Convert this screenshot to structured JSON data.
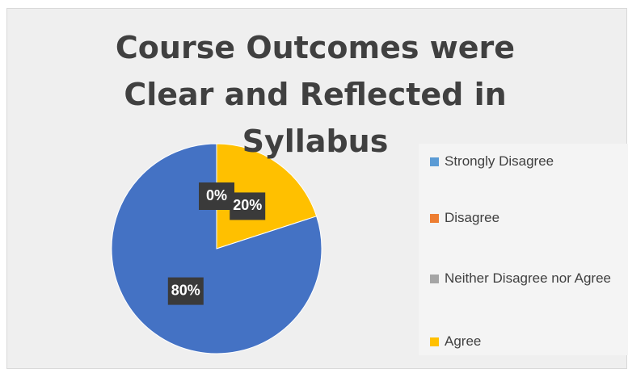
{
  "chart_data": {
    "type": "pie",
    "title": "Course Outcomes were Clear and Reflected in Syllabus",
    "categories": [
      "Strongly Disagree",
      "Disagree",
      "Neither Disagree nor Agree",
      "Agree",
      null
    ],
    "values": [
      0,
      0,
      0,
      20,
      80
    ],
    "value_labels": [
      "0%",
      null,
      null,
      "20%",
      "80%"
    ],
    "colors": [
      "#5b9bd5",
      "#ed7d31",
      "#a5a5a5",
      "#ffc000",
      "#4472c4"
    ]
  }
}
